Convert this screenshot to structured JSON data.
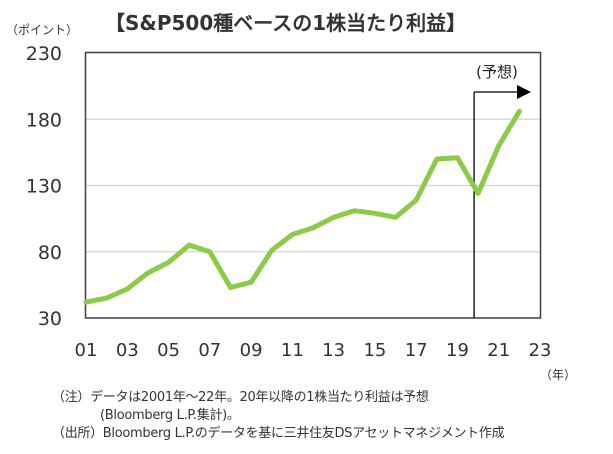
{
  "chart_data": {
    "type": "line",
    "title": "【S&P500種ベースの1株当たり利益】",
    "ylabel": "（ポイント）",
    "xlabel": "（年）",
    "ylim": [
      30,
      230
    ],
    "yticks": [
      "230",
      "180",
      "130",
      "80",
      "30"
    ],
    "ytick_values": [
      230,
      180,
      130,
      80,
      30
    ],
    "xlim": [
      2001,
      2023
    ],
    "xticks": [
      "01",
      "03",
      "05",
      "07",
      "09",
      "11",
      "13",
      "15",
      "17",
      "19",
      "21",
      "23"
    ],
    "xtick_values": [
      2001,
      2003,
      2005,
      2007,
      2009,
      2011,
      2013,
      2015,
      2017,
      2019,
      2021,
      2023
    ],
    "grid": true,
    "series": [
      {
        "name": "1株当たり利益",
        "color": "#8BCB48",
        "x": [
          2001,
          2002,
          2003,
          2004,
          2005,
          2006,
          2007,
          2008,
          2009,
          2010,
          2011,
          2012,
          2013,
          2014,
          2015,
          2016,
          2017,
          2018,
          2019,
          2020,
          2021,
          2022
        ],
        "values": [
          42,
          45,
          52,
          64,
          72,
          85,
          80,
          53,
          57,
          81,
          93,
          98,
          106,
          111,
          109,
          106,
          119,
          150,
          151,
          124,
          160,
          186
        ]
      }
    ],
    "annotations": [
      {
        "text": "(予想)",
        "from_x": 2020,
        "type": "forecast-arrow"
      }
    ]
  },
  "notes": {
    "note1_line1": "（注）データは2001年～22年。20年以降の1株当たり利益は予想",
    "note1_line2": "(Bloomberg L.P.集計)。",
    "source": "（出所）Bloomberg L.P.のデータを基に三井住友DSアセットマネジメント作成"
  }
}
